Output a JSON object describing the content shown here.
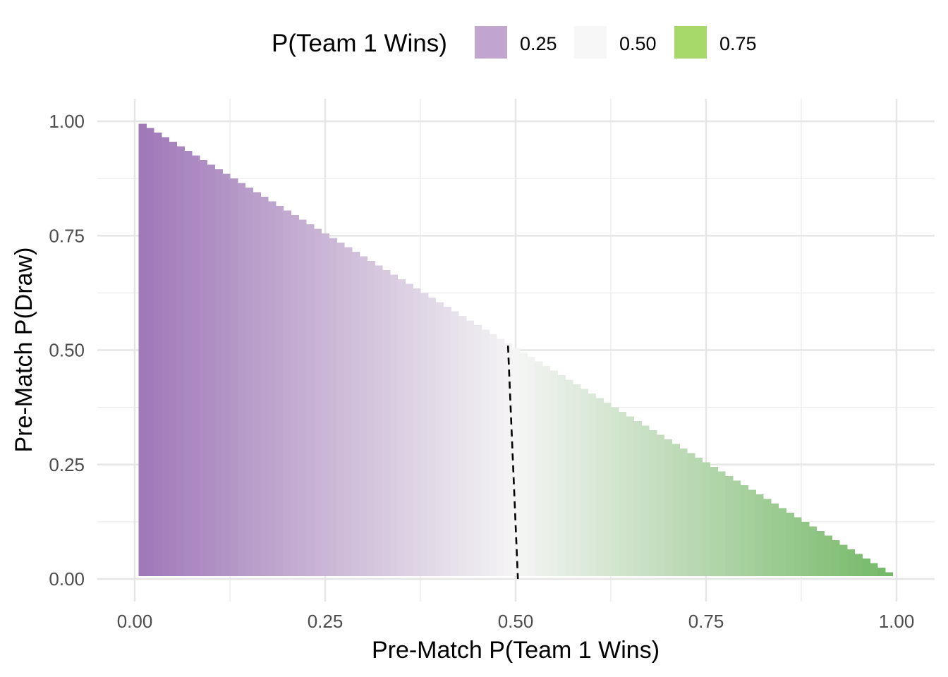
{
  "chart_data": {
    "type": "heatmap",
    "title": "",
    "xlabel": "Pre-Match P(Team 1 Wins)",
    "ylabel": "Pre-Match P(Draw)",
    "xlim": [
      0,
      1
    ],
    "ylim": [
      0,
      1
    ],
    "x_ticks": [
      "0.00",
      "0.25",
      "0.50",
      "0.75",
      "1.00"
    ],
    "y_ticks": [
      "0.00",
      "0.25",
      "0.50",
      "0.75",
      "1.00"
    ],
    "x_tick_values": [
      0,
      0.25,
      0.5,
      0.75,
      1
    ],
    "y_tick_values": [
      0,
      0.25,
      0.5,
      0.75,
      1
    ],
    "grid": true,
    "legend": {
      "title": "P(Team 1 Wins)",
      "position": "top",
      "entries": [
        {
          "label": "0.25",
          "value": 0.25,
          "color": "#c2a5cf"
        },
        {
          "label": "0.50",
          "value": 0.5,
          "color": "#f7f7f7"
        },
        {
          "label": "0.75",
          "value": 0.75,
          "color": "#a6d96a"
        }
      ]
    },
    "fill_scale": {
      "low_color": "#9e76b7",
      "mid_color": "#f5f5f5",
      "high_color": "#72b764",
      "low": 0,
      "mid": 0.5,
      "high": 1
    },
    "region": "x + y <= 1",
    "cell_step": 0.01,
    "boundary_line": {
      "style": "dashed",
      "color": "#000000",
      "points": [
        [
          0.49,
          0.51
        ],
        [
          0.503,
          0
        ]
      ]
    }
  }
}
